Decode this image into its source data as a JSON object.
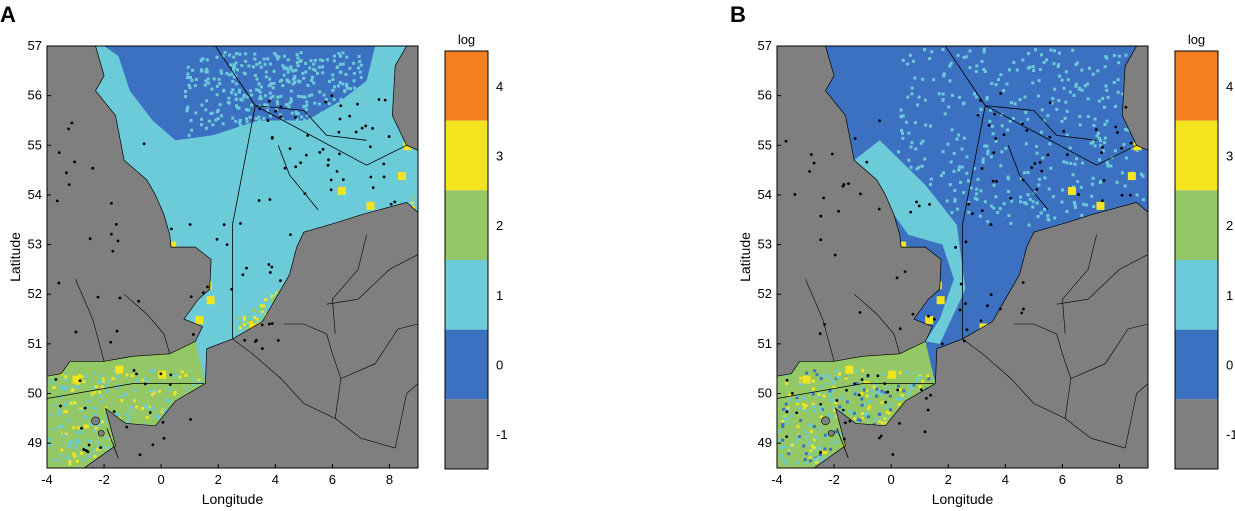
{
  "panels": [
    {
      "id": "A",
      "label": "A",
      "xlabel": "Longitude",
      "ylabel": "Latitude",
      "colorbar_title": "log",
      "variant": "a"
    },
    {
      "id": "B",
      "label": "B",
      "xlabel": "Longitude",
      "ylabel": "Latitude",
      "colorbar_title": "log",
      "variant": "b"
    }
  ],
  "axes": {
    "x_ticks": [
      "-4",
      "-2",
      "0",
      "2",
      "4",
      "6",
      "8"
    ],
    "x_tick_values": [
      -4,
      -2,
      0,
      2,
      4,
      6,
      8
    ],
    "y_ticks": [
      "49",
      "50",
      "51",
      "52",
      "53",
      "54",
      "55",
      "56",
      "57"
    ],
    "y_tick_values": [
      49,
      50,
      51,
      52,
      53,
      54,
      55,
      56,
      57
    ],
    "xlim": [
      -4,
      9
    ],
    "ylim": [
      48.5,
      57
    ]
  },
  "colorbar": {
    "levels": [
      {
        "label": "4",
        "value": 4,
        "color": "#f47f20"
      },
      {
        "label": "3",
        "value": 3,
        "color": "#f2e51e"
      },
      {
        "label": "2",
        "value": 2,
        "color": "#94c867"
      },
      {
        "label": "1",
        "value": 1,
        "color": "#6ccbd9"
      },
      {
        "label": "0",
        "value": 0,
        "color": "#3c71c1"
      },
      {
        "label": "-1",
        "value": -1,
        "color": "#7f7f7f"
      }
    ]
  },
  "colors": {
    "land": "#7f7f7f",
    "level_0": "#3c71c1",
    "level_1": "#6ccbd9",
    "level_2": "#94c867",
    "level_3": "#f2e51e",
    "level_4": "#f47f20",
    "boundary": "#000000"
  }
}
